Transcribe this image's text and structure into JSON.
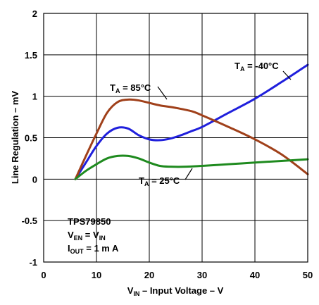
{
  "chart_data": {
    "type": "line",
    "xlabel": {
      "main": "V",
      "sub": "IN",
      "rest": " – Input Voltage – V"
    },
    "ylabel": "Line Regulation – mV",
    "xlim": [
      0,
      50
    ],
    "ylim": [
      -1,
      2
    ],
    "xticks": [
      "0",
      "10",
      "20",
      "30",
      "40",
      "50"
    ],
    "yticks": [
      "2",
      "1.5",
      "1",
      "0.5",
      "0",
      "-0.5",
      "-1"
    ],
    "grid": true,
    "series": [
      {
        "name": "T_A = -40°C",
        "color": "#1f1fdc",
        "x": [
          6,
          8,
          10,
          12,
          14,
          16,
          18,
          20,
          22,
          24,
          26,
          28,
          30,
          35,
          40,
          45,
          50
        ],
        "y": [
          0,
          0.2,
          0.4,
          0.55,
          0.62,
          0.61,
          0.53,
          0.48,
          0.47,
          0.49,
          0.53,
          0.58,
          0.63,
          0.8,
          0.97,
          1.17,
          1.38
        ]
      },
      {
        "name": "T_A = 85°C",
        "color": "#a0401a",
        "x": [
          6,
          8,
          10,
          12,
          14,
          16,
          18,
          20,
          22,
          25,
          28,
          30,
          35,
          40,
          45,
          50
        ],
        "y": [
          0,
          0.28,
          0.55,
          0.8,
          0.93,
          0.96,
          0.95,
          0.92,
          0.89,
          0.86,
          0.82,
          0.77,
          0.63,
          0.48,
          0.3,
          0.06
        ]
      },
      {
        "name": "T_A = 25°C",
        "color": "#1e8a1e",
        "x": [
          6,
          8,
          10,
          12,
          14,
          16,
          18,
          20,
          22,
          24,
          27,
          30,
          35,
          40,
          45,
          50
        ],
        "y": [
          0,
          0.1,
          0.18,
          0.25,
          0.28,
          0.28,
          0.25,
          0.2,
          0.16,
          0.15,
          0.15,
          0.16,
          0.18,
          0.2,
          0.22,
          0.24
        ]
      }
    ],
    "annotations": {
      "m40": {
        "main": "T",
        "sub": "A",
        "rest": " = -40°C"
      },
      "p85": {
        "main": "T",
        "sub": "A",
        "rest": " = 85°C"
      },
      "p25": {
        "main": "T",
        "sub": "A",
        "rest": " = 25°C"
      }
    },
    "conditions": {
      "part": "TPS79850",
      "ven": {
        "a": "V",
        "a_sub": "EN",
        "eq": " = V",
        "b_sub": "IN"
      },
      "iout": {
        "a": "I",
        "a_sub": "OUT",
        "rest": " = 1 m A"
      }
    }
  }
}
